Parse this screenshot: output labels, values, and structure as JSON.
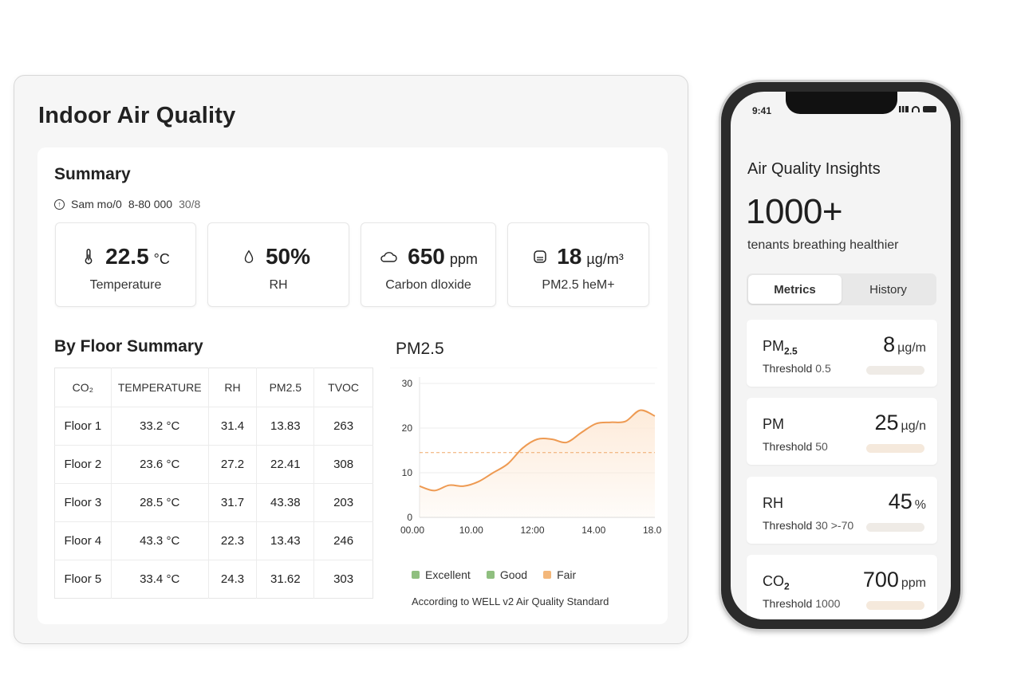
{
  "dashboard": {
    "title": "Indoor Air Quality",
    "summary": {
      "title": "Summary",
      "meta_user": "Sam mo/0",
      "meta_code": "8-80 000",
      "meta_date": "30/8",
      "metrics": [
        {
          "value": "22.5",
          "unit": "°C",
          "label": "Temperature",
          "icon": "thermometer-icon"
        },
        {
          "value": "50%",
          "unit": "",
          "label": "RH",
          "icon": "droplet-icon"
        },
        {
          "value": "650",
          "unit": "ppm",
          "label": "Carbon dloxide",
          "icon": "cloud-icon"
        },
        {
          "value": "18",
          "unit": "µg/m³",
          "label": "PM2.5 heM+",
          "icon": "filter-icon"
        }
      ]
    },
    "floor": {
      "title": "By Floor Summary",
      "headers": [
        "CO₂",
        "TEMPERATURE",
        "RH",
        "PM2.5",
        "TVOC"
      ],
      "rows": [
        [
          "Floor 1",
          "33.2 °C",
          "31.4",
          "13.83",
          "263"
        ],
        [
          "Floor 2",
          "23.6 °C",
          "27.2",
          "22.41",
          "308"
        ],
        [
          "Floor 3",
          "28.5 °C",
          "31.7",
          "43.38",
          "203"
        ],
        [
          "Floor 4",
          "43.3 °C",
          "22.3",
          "13.43",
          "246"
        ],
        [
          "Floor 5",
          "33.4 °C",
          "24.3",
          "31.62",
          "303"
        ]
      ]
    },
    "legend": [
      {
        "label": "Excellent",
        "color": "#8fbf7f"
      },
      {
        "label": "Good",
        "color": "#8fbf7f"
      },
      {
        "label": "Fair",
        "color": "#f3b77a"
      }
    ],
    "footnote": "According to WELL v2 Air Quality Standard"
  },
  "chart_data": {
    "type": "area",
    "title": "PM2.5",
    "x_ticks": [
      "00.00",
      "10.00",
      "12:00",
      "14.00",
      "18.00"
    ],
    "y_ticks": [
      0,
      10,
      20,
      30
    ],
    "ylim": [
      0,
      30
    ],
    "threshold": 14.5,
    "series": [
      {
        "values": [
          7,
          6,
          7.2,
          7,
          8,
          10,
          12,
          15.5,
          17.5,
          17.5,
          16.8,
          19,
          21,
          21.3,
          21.5,
          24,
          22.7
        ]
      }
    ],
    "colors": {
      "line": "#ee9a52",
      "fill": "#fde9d6",
      "threshold": "#f0a868"
    },
    "grid": true
  },
  "phone": {
    "time": "9:41",
    "title": "Air Quality Insights",
    "big": "1000+",
    "sub": "tenants breathing healthier",
    "tabs": [
      "Metrics",
      "History"
    ],
    "cards": [
      {
        "name": "PM",
        "sub": "2.5",
        "value": "8",
        "unit": "µg/m",
        "threshold_label": "Threshold",
        "threshold": "0.5"
      },
      {
        "name": "PM",
        "sub": "",
        "value": "25",
        "unit": "µg/n",
        "threshold_label": "Threshold",
        "threshold": "50"
      },
      {
        "name": "RH",
        "sub": "",
        "value": "45",
        "unit": "%",
        "threshold_label": "Threshold",
        "threshold": "30 >-70"
      },
      {
        "name": "CO",
        "sub": "2",
        "value": "700",
        "unit": "ppm",
        "threshold_label": "Threshold",
        "threshold": "1000"
      }
    ]
  }
}
